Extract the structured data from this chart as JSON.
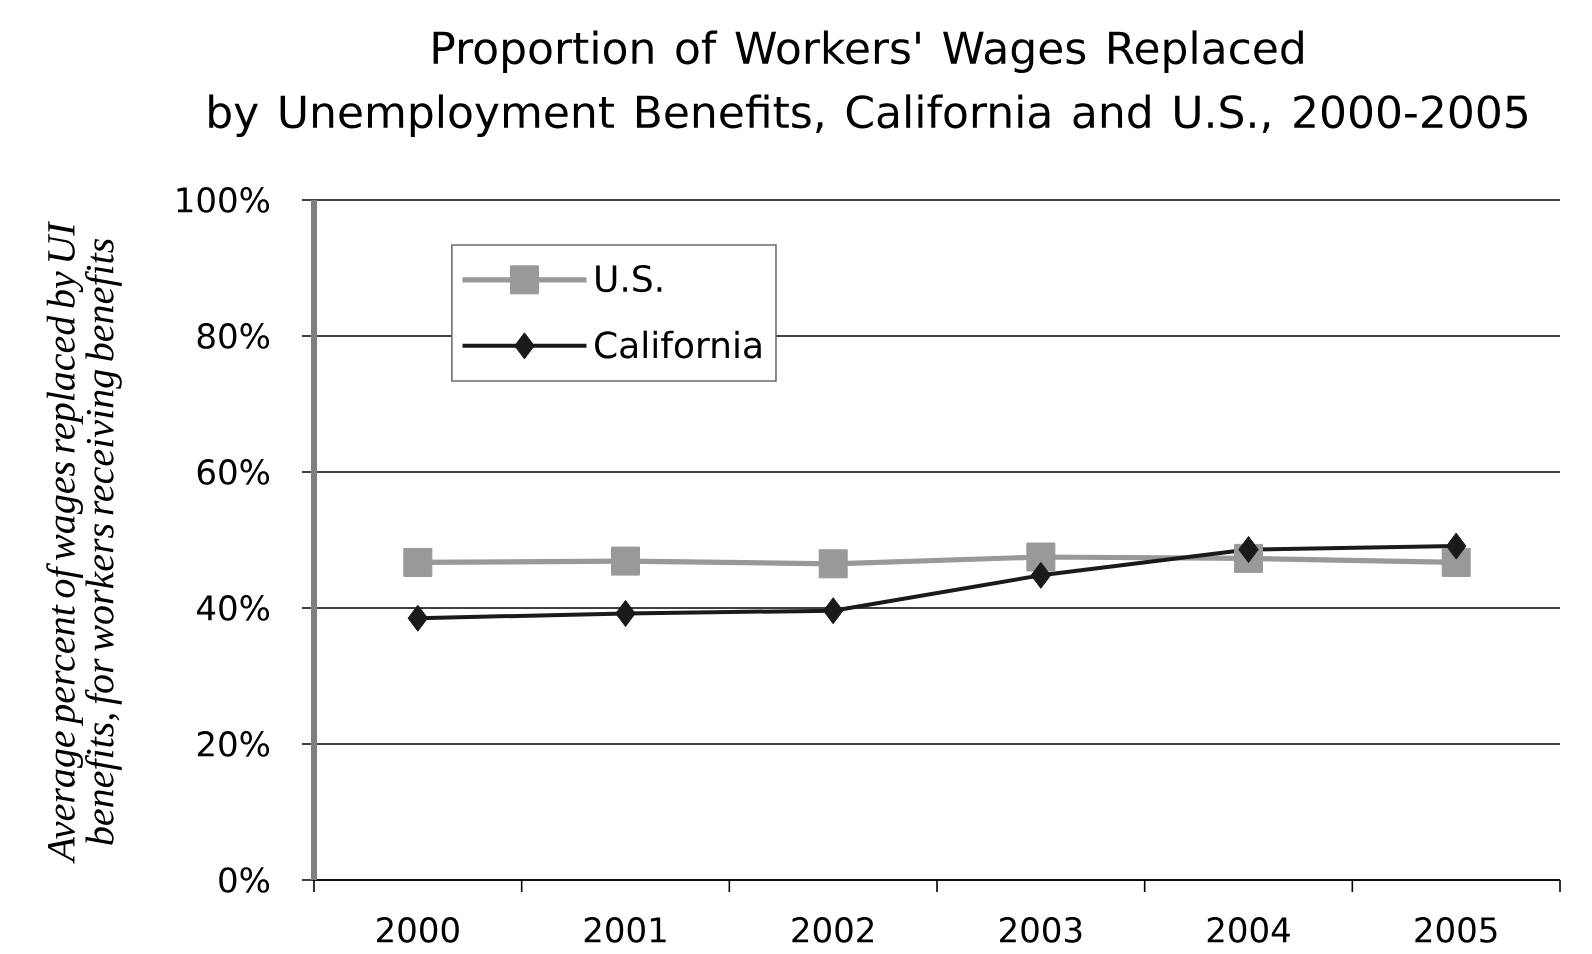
{
  "chart_data": {
    "type": "line",
    "title": "Proportion of Workers' Wages Replaced by Unemployment Benefits, California and U.S., 2000-2005",
    "ylabel": "Average percent of wages replaced by UI benefits, for workers receiving benefits",
    "categories": [
      "2000",
      "2001",
      "2002",
      "2003",
      "2004",
      "2005"
    ],
    "series": [
      {
        "name": "U.S.",
        "color": "#999999",
        "marker": "square",
        "values": [
          46.7,
          46.9,
          46.5,
          47.5,
          47.3,
          46.7
        ]
      },
      {
        "name": "California",
        "color": "#1a1a1a",
        "marker": "diamond",
        "values": [
          38.5,
          39.2,
          39.6,
          44.8,
          48.6,
          49.1
        ]
      }
    ],
    "ylim": [
      0,
      100
    ],
    "yticks": [
      {
        "value": 0,
        "label": "0%"
      },
      {
        "value": 20,
        "label": "20%"
      },
      {
        "value": 40,
        "label": "40%"
      },
      {
        "value": 60,
        "label": "60%"
      },
      {
        "value": 80,
        "label": "80%"
      },
      {
        "value": 100,
        "label": "100%"
      }
    ],
    "grid": "y",
    "legend": "top left",
    "line_style": "solid"
  }
}
